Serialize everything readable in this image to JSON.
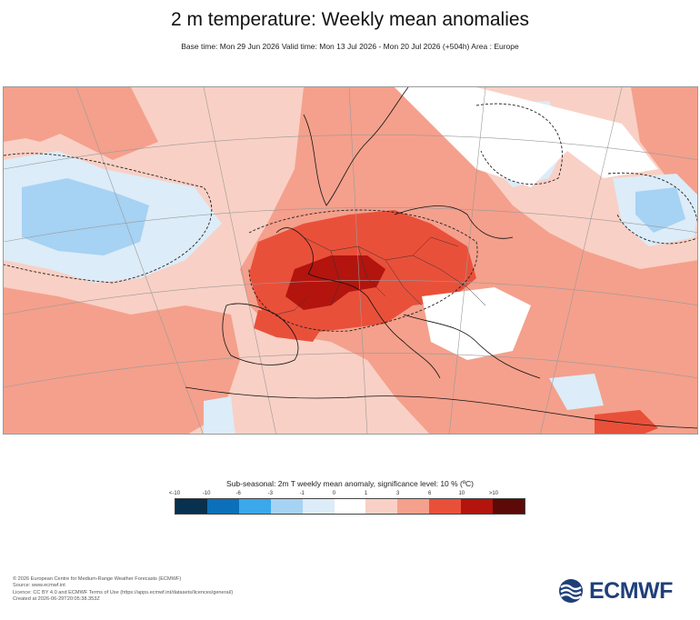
{
  "header": {
    "title": "2 m temperature: Weekly mean anomalies",
    "subtitle": "Base time: Mon 29 Jun 2026 Valid time: Mon 13 Jul 2026 - Mon 20 Jul 2026 (+504h) Area : Europe"
  },
  "map": {
    "region": "Europe",
    "anomaly_colors": {
      "weak_warm": "#f9d0c5",
      "moderate_warm": "#f4a08c",
      "strong_warm": "#e9503a",
      "very_strong_warm": "#b3140e",
      "weak_cold": "#dcecf8",
      "moderate_cold": "#a6d2f3"
    },
    "features": [
      "coastlines",
      "country-borders",
      "lat-lon-graticule",
      "significance-contours"
    ]
  },
  "legend": {
    "title": "Sub-seasonal: 2m T weekly mean anomaly, significance level: 10 % (ºC)",
    "ticks": [
      "<-10",
      "-10",
      "-6",
      "-3",
      "-1",
      "0",
      "1",
      "3",
      "6",
      "10",
      ">10"
    ],
    "colors": [
      "#08304f",
      "#0b70b9",
      "#3aa8ea",
      "#a6d2f3",
      "#dcecf8",
      "#ffffff",
      "#f9d0c5",
      "#f4a08c",
      "#e9503a",
      "#b3140e",
      "#5c0a07"
    ]
  },
  "footer": {
    "lines": [
      "© 2026 European Centre for Medium-Range Weather Forecasts (ECMWF)",
      "Source: www.ecmwf.int",
      "Licence: CC BY 4.0 and ECMWF Terms of Use (https://apps.ecmwf.int/datasets/licences/general/)",
      "Created at 2026-06-29T20:05:38.353Z"
    ]
  },
  "logo": {
    "text": "ECMWF",
    "color": "#1f3f7a",
    "icon": "ecmwf-logo-icon"
  }
}
